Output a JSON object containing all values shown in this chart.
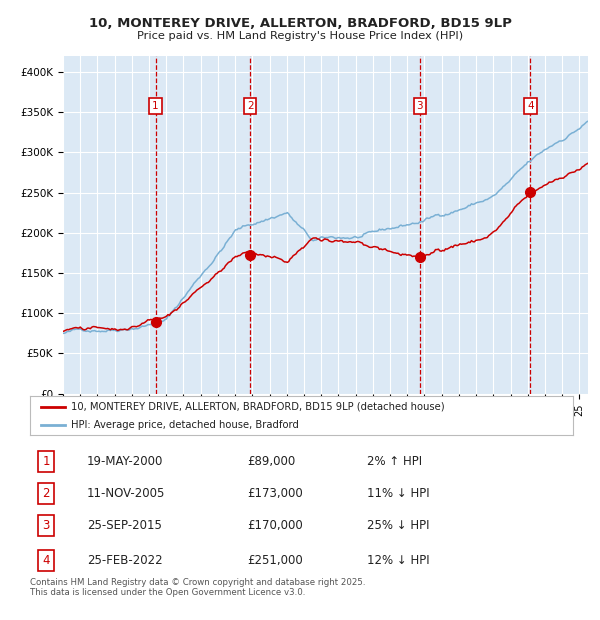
{
  "title_line1": "10, MONTEREY DRIVE, ALLERTON, BRADFORD, BD15 9LP",
  "title_line2": "Price paid vs. HM Land Registry's House Price Index (HPI)",
  "transactions": [
    {
      "num": 1,
      "date": "19-MAY-2000",
      "price": 89000,
      "pct": "2%",
      "dir": "↑"
    },
    {
      "num": 2,
      "date": "11-NOV-2005",
      "price": 173000,
      "pct": "11%",
      "dir": "↓"
    },
    {
      "num": 3,
      "date": "25-SEP-2015",
      "price": 170000,
      "pct": "25%",
      "dir": "↓"
    },
    {
      "num": 4,
      "date": "25-FEB-2022",
      "price": 251000,
      "pct": "12%",
      "dir": "↓"
    }
  ],
  "transaction_years": [
    2000.38,
    2005.87,
    2015.73,
    2022.15
  ],
  "ylim": [
    0,
    420000
  ],
  "yticks": [
    0,
    50000,
    100000,
    150000,
    200000,
    250000,
    300000,
    350000,
    400000
  ],
  "ytick_labels": [
    "£0",
    "£50K",
    "£100K",
    "£150K",
    "£200K",
    "£250K",
    "£300K",
    "£350K",
    "£400K"
  ],
  "hpi_color": "#7ab0d4",
  "price_color": "#cc0000",
  "dot_color": "#cc0000",
  "bg_color": "#dce9f5",
  "grid_color": "#ffffff",
  "legend_label_red": "10, MONTEREY DRIVE, ALLERTON, BRADFORD, BD15 9LP (detached house)",
  "legend_label_blue": "HPI: Average price, detached house, Bradford",
  "footer": "Contains HM Land Registry data © Crown copyright and database right 2025.\nThis data is licensed under the Open Government Licence v3.0.",
  "xlim_start": 1995,
  "xlim_end": 2025.5
}
